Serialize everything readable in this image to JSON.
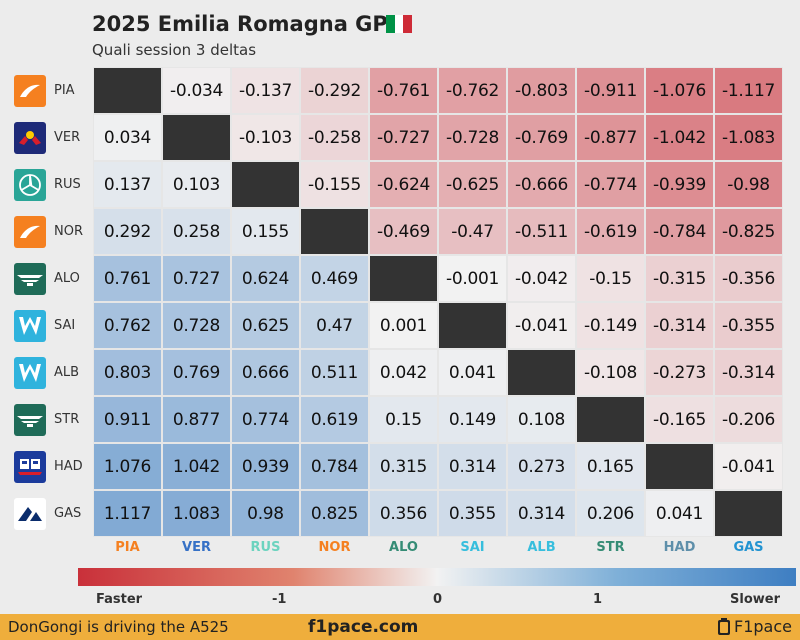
{
  "header": {
    "title": "2025 Emilia Romagna GP",
    "subtitle": "Quali session 3 deltas",
    "flag_colors": [
      "#009246",
      "#ffffff",
      "#ce2b37"
    ]
  },
  "drivers": [
    {
      "code": "PIA",
      "team_logo": "mclaren-logo",
      "color": "#f58020"
    },
    {
      "code": "VER",
      "team_logo": "red-bull-logo",
      "color": "#3671c6"
    },
    {
      "code": "RUS",
      "team_logo": "mercedes-logo",
      "color": "#6cd3bf"
    },
    {
      "code": "NOR",
      "team_logo": "mclaren-logo",
      "color": "#f58020"
    },
    {
      "code": "ALO",
      "team_logo": "aston-martin-logo",
      "color": "#358c75"
    },
    {
      "code": "SAI",
      "team_logo": "williams-logo",
      "color": "#37bedd"
    },
    {
      "code": "ALB",
      "team_logo": "williams-logo",
      "color": "#37bedd"
    },
    {
      "code": "STR",
      "team_logo": "aston-martin-logo",
      "color": "#358c75"
    },
    {
      "code": "HAD",
      "team_logo": "racing-bulls-logo",
      "color": "#5e8faa"
    },
    {
      "code": "GAS",
      "team_logo": "alpine-logo",
      "color": "#2293d1"
    }
  ],
  "chart_data": {
    "type": "heatmap",
    "title": "2025 Emilia Romagna GP",
    "subtitle": "Quali session 3 deltas",
    "rows": [
      "PIA",
      "VER",
      "RUS",
      "NOR",
      "ALO",
      "SAI",
      "ALB",
      "STR",
      "HAD",
      "GAS"
    ],
    "columns": [
      "PIA",
      "VER",
      "RUS",
      "NOR",
      "ALO",
      "SAI",
      "ALB",
      "STR",
      "HAD",
      "GAS"
    ],
    "values": [
      [
        null,
        -0.034,
        -0.137,
        -0.292,
        -0.761,
        -0.762,
        -0.803,
        -0.911,
        -1.076,
        -1.117
      ],
      [
        0.034,
        null,
        -0.103,
        -0.258,
        -0.727,
        -0.728,
        -0.769,
        -0.877,
        -1.042,
        -1.083
      ],
      [
        0.137,
        0.103,
        null,
        -0.155,
        -0.624,
        -0.625,
        -0.666,
        -0.774,
        -0.939,
        -0.98
      ],
      [
        0.292,
        0.258,
        0.155,
        null,
        -0.469,
        -0.47,
        -0.511,
        -0.619,
        -0.784,
        -0.825
      ],
      [
        0.761,
        0.727,
        0.624,
        0.469,
        null,
        -0.001,
        -0.042,
        -0.15,
        -0.315,
        -0.356
      ],
      [
        0.762,
        0.728,
        0.625,
        0.47,
        0.001,
        null,
        -0.041,
        -0.149,
        -0.314,
        -0.355
      ],
      [
        0.803,
        0.769,
        0.666,
        0.511,
        0.042,
        0.041,
        null,
        -0.108,
        -0.273,
        -0.314
      ],
      [
        0.911,
        0.877,
        0.774,
        0.619,
        0.15,
        0.149,
        0.108,
        null,
        -0.165,
        -0.206
      ],
      [
        1.076,
        1.042,
        0.939,
        0.784,
        0.315,
        0.314,
        0.273,
        0.165,
        null,
        -0.041
      ],
      [
        1.117,
        1.083,
        0.98,
        0.825,
        0.356,
        0.355,
        0.314,
        0.206,
        0.041,
        null
      ]
    ],
    "color_scale": {
      "range": [
        -1.117,
        1.117
      ],
      "negative_color": "#c9303a",
      "neutral_color": "#f2f2f2",
      "positive_color": "#3e7ec2",
      "diagonal_color": "#333333"
    },
    "colorbar": {
      "ticks": [
        "-1",
        "0",
        "1"
      ],
      "left_label": "Faster",
      "right_label": "Slower"
    }
  },
  "footer": {
    "left_text": "DonGongi is driving the A525",
    "center_text": "f1pace.com",
    "right_text": "F1pace"
  }
}
